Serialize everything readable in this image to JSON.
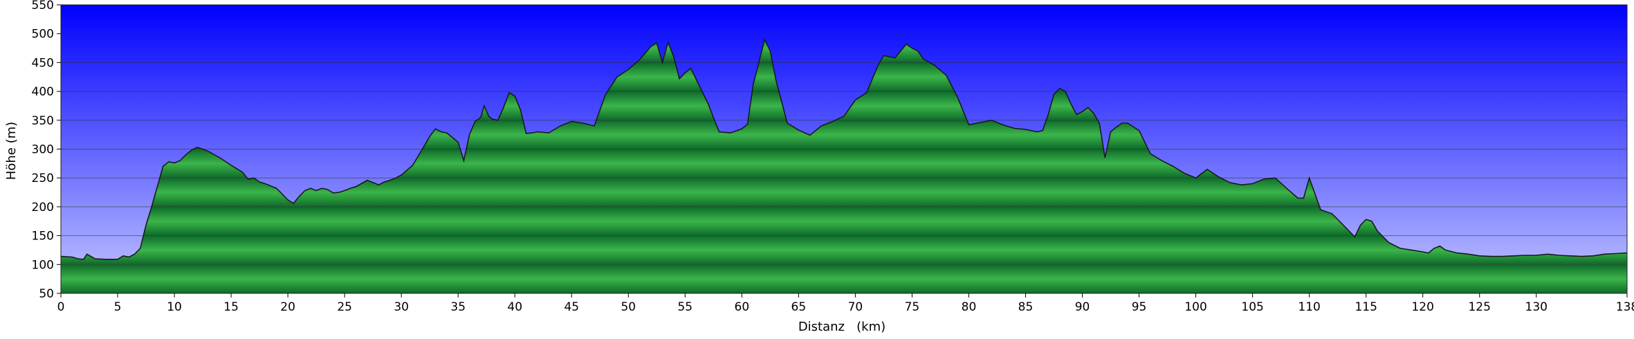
{
  "colors": {
    "sky_top": "#0000ff",
    "sky_bottom": "#c4c8ff",
    "fill_light": "#3bb54a",
    "fill_dark": "#0e6b2a",
    "outline": "#1a1a1a",
    "grid": "#333333"
  },
  "chart_data": {
    "type": "area",
    "xlabel": "Distanz   (km)",
    "ylabel": "Höhe (m)",
    "xlim": [
      0,
      138
    ],
    "ylim": [
      50,
      550
    ],
    "x_ticks": [
      0,
      5,
      10,
      15,
      20,
      25,
      30,
      35,
      40,
      45,
      50,
      55,
      60,
      65,
      70,
      75,
      80,
      85,
      90,
      95,
      100,
      105,
      110,
      115,
      120,
      125,
      130,
      138
    ],
    "y_ticks": [
      50,
      100,
      150,
      200,
      250,
      300,
      350,
      400,
      450,
      500,
      550
    ],
    "grid": true,
    "legend": "none",
    "x": [
      0,
      1,
      1.5,
      2,
      2.3,
      3,
      4,
      5,
      5.5,
      6,
      6.5,
      7,
      7.5,
      8,
      8.5,
      9,
      9.5,
      10,
      10.5,
      11,
      11.5,
      12,
      12.5,
      13,
      14,
      15,
      16,
      16.5,
      17,
      17.5,
      18,
      19,
      20,
      20.5,
      21,
      21.5,
      22,
      22.5,
      23,
      23.5,
      24,
      24.5,
      25,
      25.5,
      26,
      27,
      28,
      28.5,
      29,
      29.5,
      30,
      31,
      32,
      32.5,
      33,
      33.5,
      34,
      35,
      35.5,
      36,
      36.5,
      37,
      37.3,
      37.7,
      38,
      38.5,
      39,
      39.5,
      40,
      40.5,
      41,
      41.5,
      42,
      43,
      44,
      45,
      46,
      47,
      47.5,
      48,
      49,
      50,
      51,
      52,
      52.5,
      53,
      53.5,
      54,
      54.5,
      55,
      55.5,
      56,
      57,
      58,
      59,
      60,
      60.5,
      61,
      61.5,
      62,
      62.5,
      63,
      64,
      65,
      66,
      67,
      68,
      69,
      70,
      71,
      72,
      72.5,
      73,
      73.5,
      74,
      74.5,
      75,
      75.5,
      76,
      77,
      78,
      79,
      80,
      81,
      82,
      83,
      84,
      85,
      86,
      86.5,
      87,
      87.5,
      88,
      88.5,
      89,
      89.5,
      90,
      90.5,
      91,
      91.5,
      92,
      92.5,
      93,
      93.5,
      94,
      95,
      96,
      97,
      98,
      99,
      100,
      101,
      102,
      103,
      104,
      105,
      106,
      107,
      108,
      109,
      109.5,
      110,
      111,
      112,
      112.5,
      113,
      113.5,
      114,
      114.5,
      115,
      115.5,
      116,
      117,
      118,
      119,
      120,
      120.5,
      121,
      121.5,
      122,
      123,
      124,
      125,
      126,
      127,
      128,
      129,
      130,
      131,
      132,
      133,
      134,
      135,
      136,
      137,
      138
    ],
    "values": [
      114,
      113,
      110,
      109,
      118,
      110,
      109,
      109,
      115,
      113,
      118,
      128,
      168,
      200,
      235,
      270,
      278,
      276,
      280,
      290,
      298,
      303,
      300,
      296,
      285,
      272,
      260,
      248,
      250,
      243,
      240,
      232,
      212,
      206,
      218,
      228,
      232,
      228,
      232,
      230,
      224,
      225,
      228,
      232,
      235,
      246,
      238,
      243,
      246,
      250,
      255,
      272,
      305,
      322,
      335,
      330,
      328,
      312,
      280,
      325,
      348,
      355,
      375,
      357,
      352,
      350,
      372,
      398,
      392,
      368,
      327,
      328,
      330,
      328,
      340,
      348,
      345,
      340,
      368,
      395,
      425,
      438,
      455,
      478,
      484,
      450,
      485,
      460,
      422,
      432,
      440,
      420,
      380,
      330,
      328,
      335,
      343,
      412,
      450,
      490,
      470,
      420,
      345,
      333,
      324,
      340,
      348,
      357,
      385,
      398,
      445,
      462,
      460,
      458,
      470,
      482,
      475,
      470,
      456,
      445,
      428,
      390,
      342,
      346,
      350,
      342,
      336,
      334,
      330,
      332,
      360,
      395,
      405,
      400,
      378,
      360,
      365,
      372,
      362,
      345,
      285,
      330,
      338,
      345,
      345,
      332,
      292,
      280,
      270,
      258,
      250,
      265,
      252,
      242,
      238,
      240,
      248,
      250,
      232,
      215,
      215,
      250,
      195,
      188,
      178,
      168,
      158,
      148,
      168,
      178,
      175,
      158,
      138,
      128,
      125,
      122,
      120,
      128,
      132,
      125,
      120,
      118,
      115,
      114,
      114,
      115,
      116,
      116,
      118,
      116,
      115,
      114,
      115,
      118,
      119,
      120
    ]
  }
}
